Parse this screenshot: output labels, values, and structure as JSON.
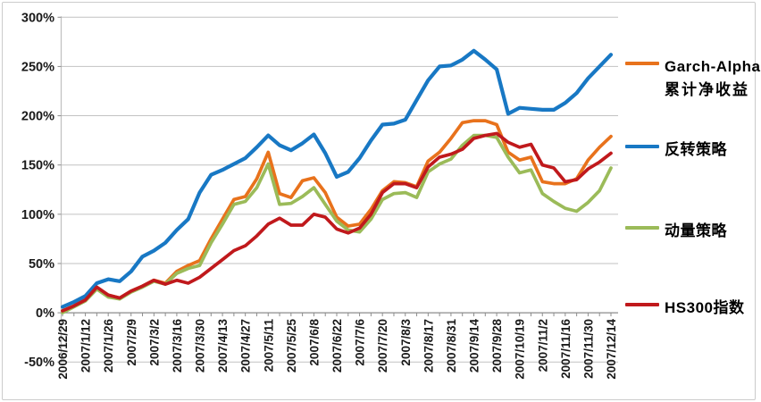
{
  "chart_data": {
    "type": "line",
    "title": "",
    "grid": true,
    "legend_position": "right",
    "y_axis": {
      "unit": "%",
      "min": -50,
      "max": 300,
      "step": 50,
      "tick_labels": [
        "300%",
        "250%",
        "200%",
        "150%",
        "100%",
        "50%",
        "0%",
        "-50%"
      ]
    },
    "x_axis": {
      "labels": [
        "2006/12/29",
        "2007/1/12",
        "2007/1/26",
        "2007/2/9",
        "2007/3/2",
        "2007/3/16",
        "2007/3/30",
        "2007/4/13",
        "2007/4/27",
        "2007/5/11",
        "2007/5/25",
        "2007/6/8",
        "2007/6/22",
        "2007/7/6",
        "2007/7/20",
        "2007/8/3",
        "2007/8/17",
        "2007/8/31",
        "2007/9/14",
        "2007/9/28",
        "2007/10/19",
        "2007/11/2",
        "2007/11/16",
        "2007/11/30",
        "2007/12/14"
      ],
      "label_every_n_points": 2,
      "points_total": 49
    },
    "series": [
      {
        "name": "Garch-Alpha 累计净收益",
        "legend_lines": [
          "Garch-Alpha",
          "累计净收益"
        ],
        "color": "#E8721C",
        "values": [
          2,
          7,
          13,
          25,
          18,
          15,
          22,
          27,
          33,
          30,
          42,
          48,
          53,
          75,
          95,
          115,
          118,
          136,
          163,
          121,
          117,
          134,
          137,
          122,
          97,
          88,
          90,
          105,
          124,
          133,
          132,
          128,
          154,
          163,
          177,
          193,
          195,
          195,
          191,
          163,
          155,
          158,
          133,
          131,
          131,
          136,
          155,
          168,
          179
        ]
      },
      {
        "name": "反转策略",
        "legend_lines": [
          "反转策略"
        ],
        "color": "#1878C4",
        "values": [
          6,
          11,
          17,
          30,
          34,
          32,
          42,
          57,
          63,
          71,
          84,
          95,
          122,
          140,
          145,
          151,
          157,
          168,
          180,
          170,
          165,
          172,
          181,
          162,
          138,
          143,
          157,
          175,
          191,
          192,
          196,
          216,
          236,
          250,
          251,
          257,
          266,
          257,
          247,
          202,
          208,
          207,
          206,
          206,
          213,
          223,
          238,
          250,
          262
        ]
      },
      {
        "name": "动量策略",
        "legend_lines": [
          "动量策略"
        ],
        "color": "#9BBB59",
        "values": [
          0,
          6,
          12,
          24,
          16,
          14,
          21,
          26,
          32,
          29,
          40,
          45,
          48,
          71,
          90,
          110,
          113,
          127,
          151,
          110,
          111,
          118,
          127,
          110,
          93,
          84,
          82,
          95,
          115,
          121,
          122,
          117,
          143,
          151,
          156,
          170,
          180,
          180,
          178,
          158,
          142,
          145,
          121,
          113,
          106,
          103,
          112,
          124,
          147
        ]
      },
      {
        "name": "HS300指数",
        "legend_lines": [
          "HS300指数"
        ],
        "color": "#C0191C",
        "values": [
          2,
          7,
          13,
          26,
          18,
          15,
          22,
          27,
          33,
          29,
          33,
          30,
          36,
          45,
          54,
          63,
          68,
          78,
          90,
          96,
          89,
          89,
          100,
          97,
          85,
          81,
          86,
          100,
          122,
          131,
          131,
          127,
          148,
          158,
          161,
          166,
          177,
          180,
          182,
          173,
          168,
          171,
          150,
          147,
          133,
          135,
          146,
          153,
          162
        ]
      }
    ]
  },
  "colors": {
    "background": "#FFFFFF",
    "gridline": "#C2C2C2",
    "axis_line": "#8C8C8C",
    "tick": "#8C8C8C",
    "label_text": "#1A1A1A",
    "frame_border": "#CBCBCB"
  }
}
